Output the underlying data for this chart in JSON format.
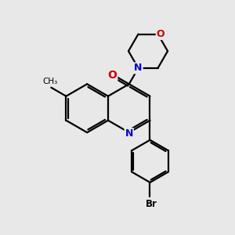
{
  "bg_color": "#e8e8e8",
  "bond_color": "#000000",
  "N_color": "#0000cc",
  "O_color": "#cc0000",
  "line_width": 1.6,
  "figsize": [
    3.0,
    3.0
  ],
  "dpi": 100,
  "xlim": [
    0,
    10
  ],
  "ylim": [
    0,
    10
  ]
}
